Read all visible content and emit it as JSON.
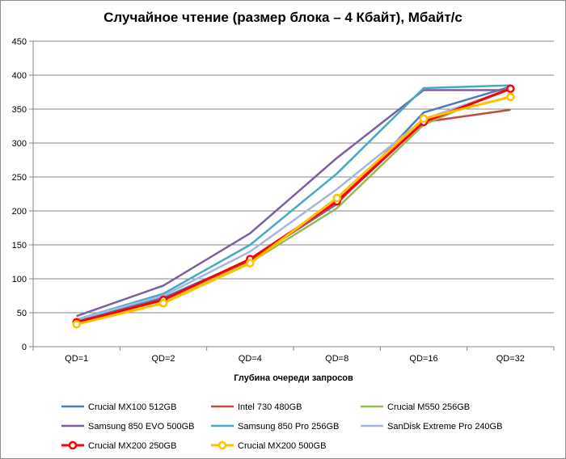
{
  "chart_data": {
    "type": "line",
    "title": "Случайное чтение (размер блока – 4 Кбайт), Мбайт/с",
    "xlabel": "Глубина очереди запросов",
    "ylabel": "",
    "categories": [
      "QD=1",
      "QD=2",
      "QD=4",
      "QD=8",
      "QD=16",
      "QD=32"
    ],
    "ylim": [
      0,
      450
    ],
    "yticks": [
      0,
      50,
      100,
      150,
      200,
      250,
      300,
      350,
      400,
      450
    ],
    "grid": true,
    "legend_position": "bottom",
    "series": [
      {
        "name": "Crucial MX100 512GB",
        "color": "#4a7ebb",
        "marker": false,
        "values": [
          38,
          72,
          128,
          210,
          345,
          383
        ]
      },
      {
        "name": "Intel 730 480GB",
        "color": "#be4b48",
        "marker": false,
        "values": [
          36,
          70,
          127,
          212,
          331,
          349
        ]
      },
      {
        "name": "Crucial M550 256GB",
        "color": "#98b954",
        "marker": false,
        "values": [
          36,
          68,
          124,
          204,
          327,
          382
        ]
      },
      {
        "name": "Samsung 850 EVO 500GB",
        "color": "#7d5fa0",
        "marker": false,
        "values": [
          45,
          90,
          167,
          278,
          378,
          378
        ]
      },
      {
        "name": "Samsung 850 Pro 256GB",
        "color": "#46aac5",
        "marker": false,
        "values": [
          40,
          78,
          150,
          255,
          381,
          385
        ]
      },
      {
        "name": "SanDisk Extreme Pro 240GB",
        "color": "#a5b6e0",
        "marker": false,
        "values": [
          40,
          75,
          140,
          232,
          335,
          380
        ]
      },
      {
        "name": "Crucial MX200 250GB",
        "color": "#ff0000",
        "marker": true,
        "values": [
          36,
          69,
          129,
          214,
          331,
          380
        ]
      },
      {
        "name": "Crucial MX200 500GB",
        "color": "#ffc000",
        "marker": true,
        "values": [
          33,
          64,
          123,
          219,
          336,
          368
        ]
      }
    ]
  }
}
